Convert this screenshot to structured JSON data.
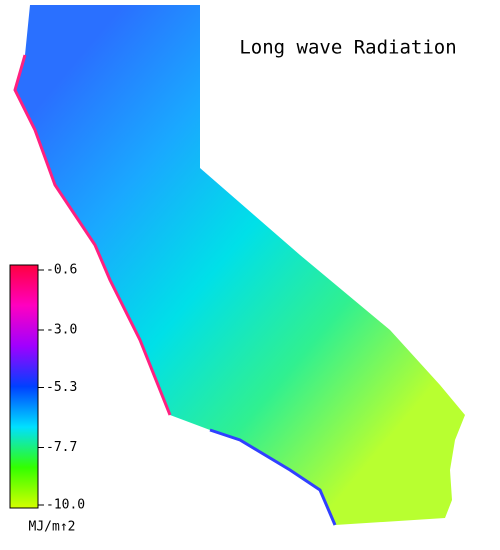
{
  "map": {
    "title": "Long wave Radiation",
    "colorbar": {
      "label": "MJ/m↑2",
      "clim": [
        -10,
        -0.6
      ],
      "ticks": [
        -0.6,
        {
          "value": -3,
          "label": "-3.0"
        },
        -5.3,
        -7.7,
        {
          "value": -10,
          "label": "-10.0"
        }
      ],
      "colors": [
        "#d4ff00",
        "#33ff00",
        "#00e0ff",
        "#0040ff",
        "#a000ff",
        "#ff00c0",
        "#ff0040"
      ]
    }
  }
}
